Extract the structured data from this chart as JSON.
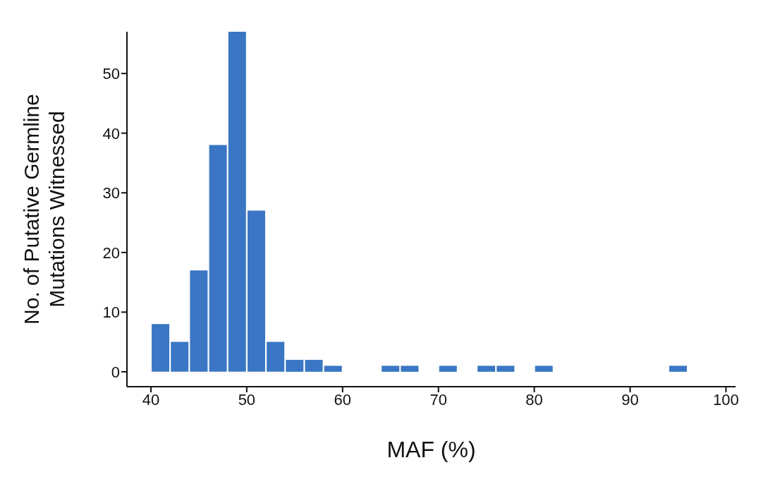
{
  "chart_data": {
    "type": "histogram",
    "xlabel": "MAF (%)",
    "ylabel": "No. of Putative Germline\nMutations Witnessed",
    "bins": [
      40,
      42,
      44,
      46,
      48,
      50,
      52,
      54,
      56,
      58,
      60,
      62,
      64,
      66,
      68,
      70,
      72,
      74,
      76,
      78,
      80,
      82,
      84,
      86,
      88,
      90,
      92,
      94,
      96
    ],
    "values": [
      8,
      5,
      17,
      38,
      57,
      27,
      5,
      2,
      2,
      1,
      0,
      0,
      1,
      1,
      0,
      1,
      0,
      1,
      1,
      0,
      1,
      0,
      0,
      0,
      0,
      0,
      0,
      1
    ],
    "color": "#3a76c4",
    "xlim": [
      37.5,
      101
    ],
    "xticks": [
      40,
      50,
      60,
      70,
      80,
      90,
      100
    ],
    "ylim": [
      -2.5,
      57
    ],
    "yticks": [
      0,
      10,
      20,
      30,
      40,
      50
    ],
    "grid": false
  }
}
